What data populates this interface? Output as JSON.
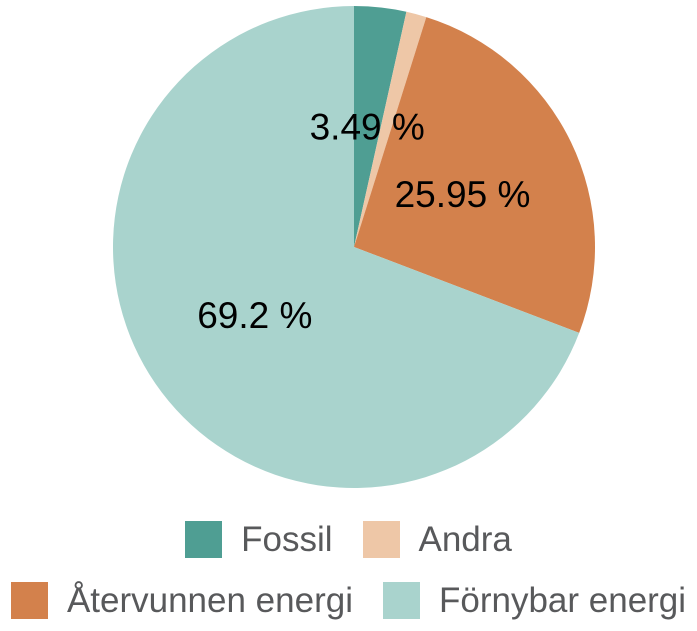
{
  "figure": {
    "background_color": "#ffffff"
  },
  "chart_data": {
    "type": "pie",
    "title": "",
    "direction": "clockwise",
    "start_angle_deg": 0,
    "grid": false,
    "legend_position": "bottom",
    "label_text_color": "#000000",
    "legend_text_color": "#58595b",
    "slices": [
      {
        "label": "Fossil",
        "value": 3.49,
        "display_label": "3.49 %",
        "color": "#4f9e93"
      },
      {
        "label": "Andra",
        "value": 1.36,
        "display_label": "",
        "color": "#eec7a7"
      },
      {
        "label": "Återvunnen energi",
        "value": 25.95,
        "display_label": "25.95 %",
        "color": "#d3814c"
      },
      {
        "label": "Förnybar energi",
        "value": 69.2,
        "display_label": "69.2 %",
        "color": "#a9d3cd"
      }
    ],
    "legend_rows": [
      [
        0,
        1
      ],
      [
        2,
        3
      ]
    ]
  }
}
